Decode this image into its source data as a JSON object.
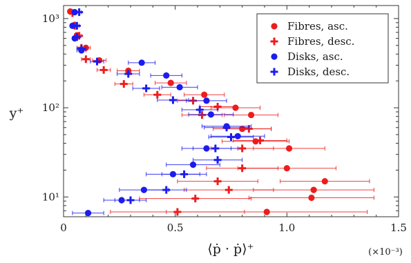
{
  "chart_data": {
    "type": "scatter",
    "title": "",
    "xlabel": "⟨ṗ · ṗ⟩⁺",
    "ylabel": "y⁺",
    "x_multiplier": "(×10⁻³)",
    "xlim": [
      0,
      1.5
    ],
    "ylim": [
      6,
      1400
    ],
    "yscale": "log",
    "grid": false,
    "legend_position": "top-right",
    "x_ticks": [
      "0",
      "0.5",
      "1.0",
      "1.5"
    ],
    "x_tick_values": [
      0,
      0.5,
      1.0,
      1.5
    ],
    "y_ticks": [
      "10¹",
      "10²",
      "10³"
    ],
    "y_tick_values": [
      10,
      100,
      1000
    ],
    "series": [
      {
        "name": "Fibres, asc.",
        "marker": "circle",
        "color": "#ee1c1c",
        "points": [
          {
            "x": 0.03,
            "y": 1200,
            "xerr": 0.01
          },
          {
            "x": 0.05,
            "y": 850,
            "xerr": 0.01
          },
          {
            "x": 0.06,
            "y": 650,
            "xerr": 0.01
          },
          {
            "x": 0.1,
            "y": 470,
            "xerr": 0.02
          },
          {
            "x": 0.16,
            "y": 340,
            "xerr": 0.03
          },
          {
            "x": 0.29,
            "y": 260,
            "xerr": 0.05
          },
          {
            "x": 0.48,
            "y": 190,
            "xerr": 0.07
          },
          {
            "x": 0.63,
            "y": 140,
            "xerr": 0.09
          },
          {
            "x": 0.77,
            "y": 100,
            "xerr": 0.11
          },
          {
            "x": 0.84,
            "y": 83,
            "xerr": 0.12
          },
          {
            "x": 0.8,
            "y": 58,
            "xerr": 0.13
          },
          {
            "x": 0.86,
            "y": 42,
            "xerr": 0.15
          },
          {
            "x": 1.01,
            "y": 35,
            "xerr": 0.16
          },
          {
            "x": 1.0,
            "y": 21,
            "xerr": 0.22
          },
          {
            "x": 1.17,
            "y": 15,
            "xerr": 0.2
          },
          {
            "x": 1.12,
            "y": 12,
            "xerr": 0.27
          },
          {
            "x": 1.11,
            "y": 9.8,
            "xerr": 0.28
          },
          {
            "x": 0.91,
            "y": 6.8,
            "xerr": 0.45
          }
        ]
      },
      {
        "name": "Fibres, desc.",
        "marker": "plus",
        "color": "#ee1c1c",
        "points": [
          {
            "x": 0.04,
            "y": 1150,
            "xerr": 0.01
          },
          {
            "x": 0.05,
            "y": 830,
            "xerr": 0.01
          },
          {
            "x": 0.07,
            "y": 640,
            "xerr": 0.01
          },
          {
            "x": 0.08,
            "y": 470,
            "xerr": 0.02
          },
          {
            "x": 0.1,
            "y": 350,
            "xerr": 0.02
          },
          {
            "x": 0.18,
            "y": 265,
            "xerr": 0.03
          },
          {
            "x": 0.27,
            "y": 185,
            "xerr": 0.04
          },
          {
            "x": 0.42,
            "y": 140,
            "xerr": 0.06
          },
          {
            "x": 0.58,
            "y": 120,
            "xerr": 0.07
          },
          {
            "x": 0.69,
            "y": 103,
            "xerr": 0.08
          },
          {
            "x": 0.62,
            "y": 83,
            "xerr": 0.09
          },
          {
            "x": 0.83,
            "y": 58,
            "xerr": 0.1
          },
          {
            "x": 0.88,
            "y": 43,
            "xerr": 0.12
          },
          {
            "x": 0.8,
            "y": 35,
            "xerr": 0.14
          },
          {
            "x": 0.8,
            "y": 21,
            "xerr": 0.16
          },
          {
            "x": 0.69,
            "y": 15,
            "xerr": 0.18
          },
          {
            "x": 0.74,
            "y": 12,
            "xerr": 0.2
          },
          {
            "x": 0.59,
            "y": 9.6,
            "xerr": 0.25
          },
          {
            "x": 0.51,
            "y": 6.8,
            "xerr": 0.3
          }
        ]
      },
      {
        "name": "Disks, asc.",
        "marker": "circle",
        "color": "#1c1cee",
        "points": [
          {
            "x": 0.05,
            "y": 1180,
            "xerr": 0.01
          },
          {
            "x": 0.04,
            "y": 830,
            "xerr": 0.01
          },
          {
            "x": 0.05,
            "y": 600,
            "xerr": 0.01
          },
          {
            "x": 0.08,
            "y": 440,
            "xerr": 0.02
          },
          {
            "x": 0.35,
            "y": 320,
            "xerr": 0.06
          },
          {
            "x": 0.46,
            "y": 230,
            "xerr": 0.07
          },
          {
            "x": 0.52,
            "y": 170,
            "xerr": 0.08
          },
          {
            "x": 0.64,
            "y": 120,
            "xerr": 0.09
          },
          {
            "x": 0.66,
            "y": 84,
            "xerr": 0.1
          },
          {
            "x": 0.73,
            "y": 62,
            "xerr": 0.11
          },
          {
            "x": 0.78,
            "y": 48,
            "xerr": 0.12
          },
          {
            "x": 0.64,
            "y": 35,
            "xerr": 0.11
          },
          {
            "x": 0.58,
            "y": 23,
            "xerr": 0.12
          },
          {
            "x": 0.49,
            "y": 18,
            "xerr": 0.12
          },
          {
            "x": 0.36,
            "y": 12,
            "xerr": 0.11
          },
          {
            "x": 0.26,
            "y": 9.2,
            "xerr": 0.08
          },
          {
            "x": 0.11,
            "y": 6.6,
            "xerr": 0.07
          }
        ]
      },
      {
        "name": "Disks, desc.",
        "marker": "plus",
        "color": "#1c1cee",
        "points": [
          {
            "x": 0.07,
            "y": 1180,
            "xerr": 0.01
          },
          {
            "x": 0.06,
            "y": 830,
            "xerr": 0.01
          },
          {
            "x": 0.06,
            "y": 620,
            "xerr": 0.01
          },
          {
            "x": 0.08,
            "y": 460,
            "xerr": 0.02
          },
          {
            "x": 0.15,
            "y": 330,
            "xerr": 0.03
          },
          {
            "x": 0.29,
            "y": 240,
            "xerr": 0.05
          },
          {
            "x": 0.37,
            "y": 165,
            "xerr": 0.06
          },
          {
            "x": 0.49,
            "y": 122,
            "xerr": 0.07
          },
          {
            "x": 0.61,
            "y": 95,
            "xerr": 0.08
          },
          {
            "x": 0.73,
            "y": 60,
            "xerr": 0.1
          },
          {
            "x": 0.75,
            "y": 47,
            "xerr": 0.1
          },
          {
            "x": 0.68,
            "y": 35,
            "xerr": 0.1
          },
          {
            "x": 0.69,
            "y": 26,
            "xerr": 0.11
          },
          {
            "x": 0.54,
            "y": 18,
            "xerr": 0.1
          },
          {
            "x": 0.46,
            "y": 12,
            "xerr": 0.09
          },
          {
            "x": 0.3,
            "y": 9.2,
            "xerr": 0.07
          }
        ]
      }
    ]
  }
}
